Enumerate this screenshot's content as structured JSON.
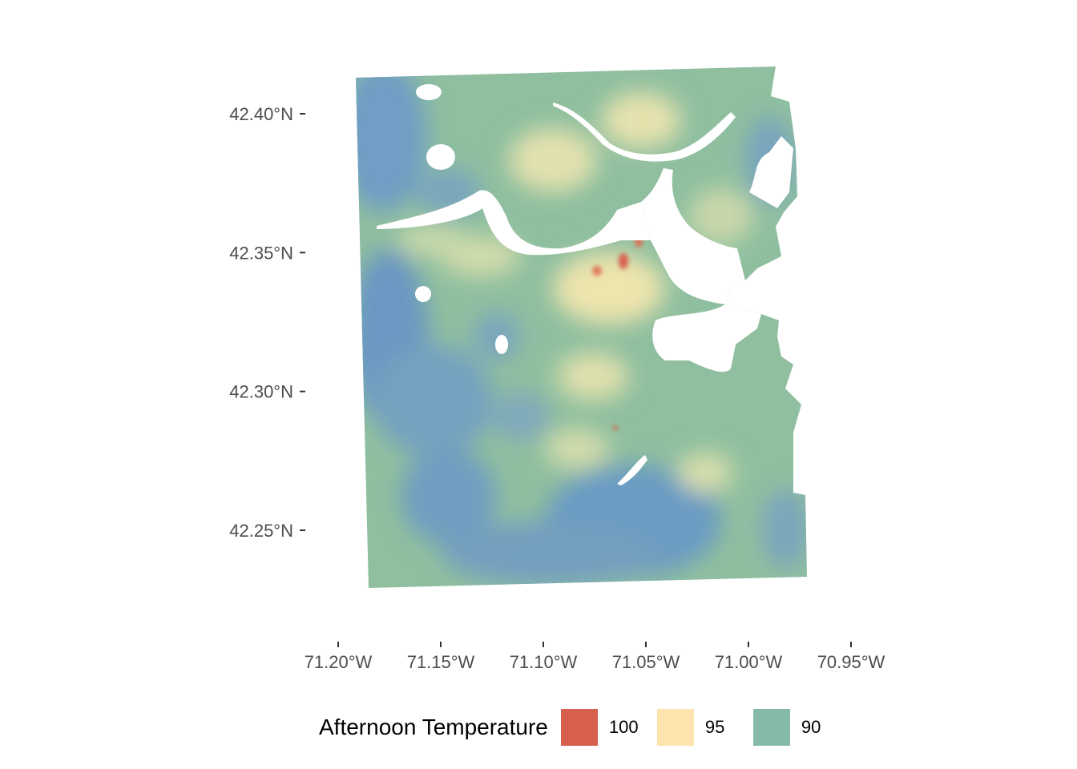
{
  "map": {
    "extent": {
      "lon_min": -71.185,
      "lon_max": -70.975,
      "lat_min": 42.228,
      "lat_max": 42.413
    },
    "lat_ticks": [
      {
        "value": 42.4,
        "label": "42.40°N"
      },
      {
        "value": 42.35,
        "label": "42.35°N"
      },
      {
        "value": 42.3,
        "label": "42.30°N"
      },
      {
        "value": 42.25,
        "label": "42.25°N"
      }
    ],
    "lon_ticks": [
      {
        "value": -71.2,
        "label": "71.20°W"
      },
      {
        "value": -71.15,
        "label": "71.15°W"
      },
      {
        "value": -71.1,
        "label": "71.10°W"
      },
      {
        "value": -71.05,
        "label": "71.05°W"
      },
      {
        "value": -71.0,
        "label": "71.00°W"
      },
      {
        "value": -70.95,
        "label": "70.95°W"
      }
    ],
    "palette": {
      "low": "#6a9bc3",
      "mid": "#8fbfa2",
      "warm": "#fde6b0",
      "hot": "#d6604d",
      "water": "#ffffff"
    }
  },
  "legend": {
    "title": "Afternoon Temperature",
    "items": [
      {
        "label": "100",
        "color": "#d6604d"
      },
      {
        "label": "95",
        "color": "#fee3ae"
      },
      {
        "label": "90",
        "color": "#85b9a9"
      }
    ]
  }
}
